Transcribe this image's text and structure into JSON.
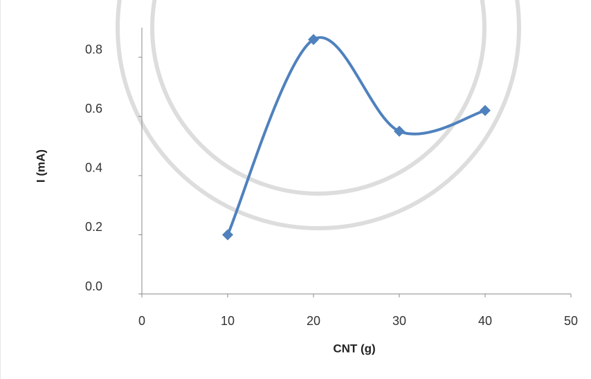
{
  "chart_data": {
    "type": "line",
    "x_label": "CNT (g)",
    "y_label": "I (mA)",
    "x": [
      10,
      20,
      30,
      40
    ],
    "series": [
      {
        "color": "#4f81bd",
        "values": [
          0.2,
          0.86,
          0.55,
          0.62
        ]
      }
    ],
    "xlim": [
      0,
      50
    ],
    "xticks": [
      0,
      10,
      20,
      30,
      40,
      50
    ],
    "ylim": [
      0,
      0.9
    ],
    "yticks": [
      {
        "value": 0,
        "label": "0.0"
      },
      0.2,
      0.4,
      0.6,
      0.8
    ],
    "smooth": true,
    "grid": false
  }
}
